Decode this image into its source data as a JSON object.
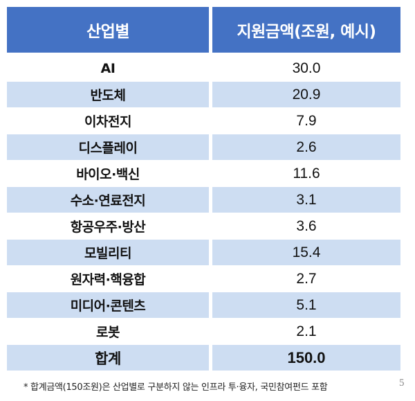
{
  "header": {
    "col1": "산업별",
    "col2": "지원금액(조원, 예시)"
  },
  "rows": [
    {
      "industry": "AI",
      "amount": "30.0"
    },
    {
      "industry": "반도체",
      "amount": "20.9"
    },
    {
      "industry": "이차전지",
      "amount": "7.9"
    },
    {
      "industry": "디스플레이",
      "amount": "2.6"
    },
    {
      "industry": "바이오·백신",
      "amount": "11.6"
    },
    {
      "industry": "수소·연료전지",
      "amount": "3.1"
    },
    {
      "industry": "항공우주·방산",
      "amount": "3.6"
    },
    {
      "industry": "모빌리티",
      "amount": "15.4"
    },
    {
      "industry": "원자력·핵융합",
      "amount": "2.7"
    },
    {
      "industry": "미디어·콘텐츠",
      "amount": "5.1"
    },
    {
      "industry": "로봇",
      "amount": "2.1"
    }
  ],
  "total": {
    "label": "합계",
    "amount": "150.0"
  },
  "footnote": "* 합계금액(150조원)은 산업별로 구분하지 않는 인프라 투·융자, 국민참여펀드 포함",
  "page_number": "5",
  "colors": {
    "header_bg": "#4472c4",
    "shaded_row_bg": "#cdddf2"
  }
}
